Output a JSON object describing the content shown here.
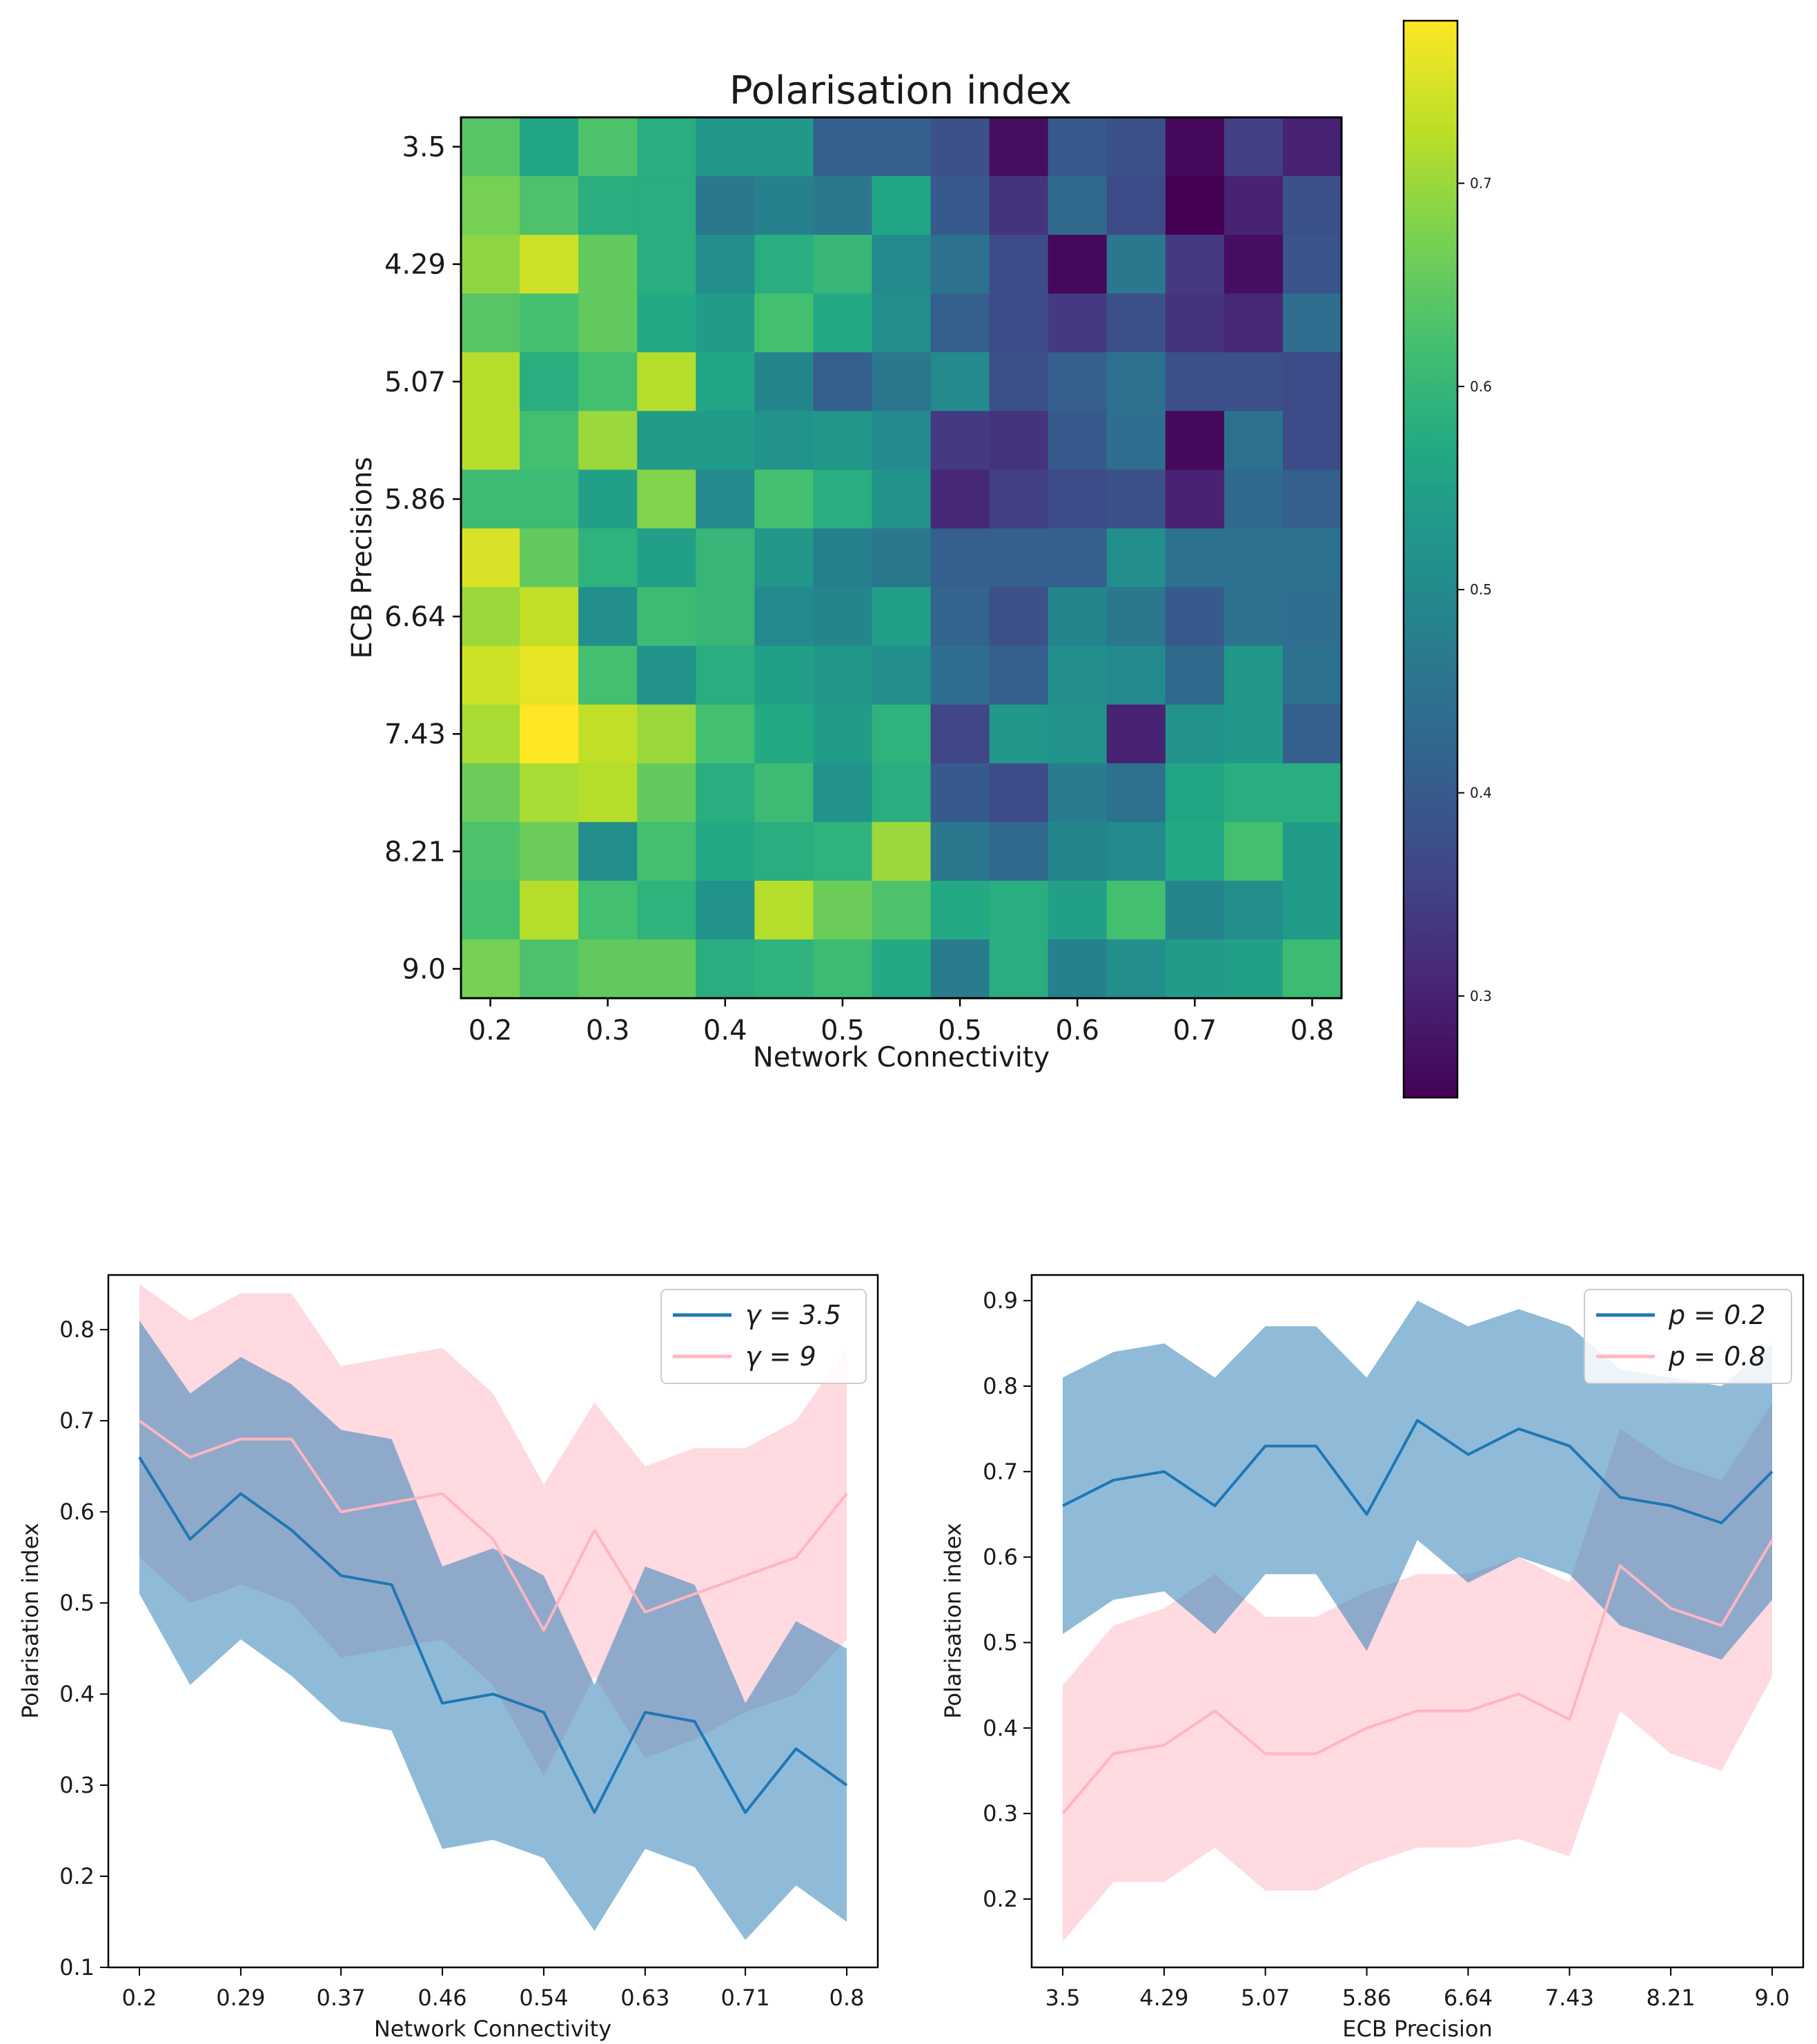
{
  "chart_data": [
    {
      "type": "heatmap",
      "title": "Polarisation index",
      "xlabel": "Network Connectivity",
      "ylabel": "ECB Precisions",
      "x_tick_labels": [
        "0.2",
        "0.3",
        "0.4",
        "0.5",
        "0.5",
        "0.6",
        "0.7",
        "0.8"
      ],
      "y_tick_labels": [
        "3.5",
        "4.29",
        "5.07",
        "5.86",
        "6.64",
        "7.43",
        "8.21",
        "9.0"
      ],
      "colorbar": {
        "min": 0.25,
        "max": 0.78,
        "ticks": [
          "0.3",
          "0.4",
          "0.5",
          "0.6",
          "0.7"
        ],
        "colormap": "viridis"
      },
      "values": [
        [
          0.64,
          0.56,
          0.63,
          0.58,
          0.53,
          0.53,
          0.41,
          0.41,
          0.38,
          0.27,
          0.4,
          0.38,
          0.26,
          0.35,
          0.3
        ],
        [
          0.67,
          0.63,
          0.58,
          0.58,
          0.46,
          0.48,
          0.46,
          0.56,
          0.4,
          0.33,
          0.43,
          0.37,
          0.25,
          0.3,
          0.38
        ],
        [
          0.69,
          0.74,
          0.65,
          0.58,
          0.51,
          0.58,
          0.6,
          0.5,
          0.45,
          0.37,
          0.26,
          0.46,
          0.34,
          0.27,
          0.39
        ],
        [
          0.64,
          0.62,
          0.65,
          0.57,
          0.54,
          0.62,
          0.57,
          0.51,
          0.41,
          0.37,
          0.34,
          0.38,
          0.33,
          0.31,
          0.44
        ],
        [
          0.72,
          0.58,
          0.62,
          0.72,
          0.56,
          0.49,
          0.41,
          0.46,
          0.5,
          0.38,
          0.41,
          0.45,
          0.38,
          0.38,
          0.37
        ],
        [
          0.72,
          0.62,
          0.7,
          0.54,
          0.54,
          0.52,
          0.53,
          0.5,
          0.34,
          0.33,
          0.4,
          0.44,
          0.26,
          0.45,
          0.37
        ],
        [
          0.61,
          0.61,
          0.55,
          0.68,
          0.5,
          0.62,
          0.58,
          0.52,
          0.31,
          0.35,
          0.37,
          0.38,
          0.3,
          0.43,
          0.41
        ],
        [
          0.75,
          0.65,
          0.59,
          0.55,
          0.6,
          0.53,
          0.48,
          0.46,
          0.41,
          0.41,
          0.41,
          0.51,
          0.45,
          0.45,
          0.45
        ],
        [
          0.7,
          0.73,
          0.51,
          0.61,
          0.6,
          0.5,
          0.49,
          0.55,
          0.42,
          0.38,
          0.49,
          0.46,
          0.4,
          0.45,
          0.44
        ],
        [
          0.74,
          0.76,
          0.62,
          0.52,
          0.58,
          0.55,
          0.53,
          0.51,
          0.44,
          0.41,
          0.51,
          0.5,
          0.43,
          0.53,
          0.45
        ],
        [
          0.71,
          0.78,
          0.73,
          0.7,
          0.62,
          0.57,
          0.54,
          0.59,
          0.36,
          0.53,
          0.52,
          0.3,
          0.52,
          0.53,
          0.41
        ],
        [
          0.66,
          0.71,
          0.72,
          0.65,
          0.58,
          0.61,
          0.52,
          0.58,
          0.4,
          0.37,
          0.47,
          0.45,
          0.56,
          0.58,
          0.58
        ],
        [
          0.63,
          0.66,
          0.51,
          0.62,
          0.57,
          0.58,
          0.59,
          0.7,
          0.46,
          0.43,
          0.49,
          0.5,
          0.57,
          0.62,
          0.54
        ],
        [
          0.62,
          0.72,
          0.62,
          0.59,
          0.52,
          0.72,
          0.66,
          0.63,
          0.57,
          0.58,
          0.55,
          0.62,
          0.49,
          0.51,
          0.54
        ],
        [
          0.67,
          0.63,
          0.65,
          0.65,
          0.58,
          0.59,
          0.61,
          0.57,
          0.47,
          0.58,
          0.48,
          0.51,
          0.54,
          0.55,
          0.61
        ]
      ]
    },
    {
      "type": "line",
      "xlabel": "Network Connectivity",
      "ylabel": "Polarisation index",
      "x": [
        0.2,
        0.243,
        0.286,
        0.329,
        0.371,
        0.414,
        0.457,
        0.5,
        0.543,
        0.586,
        0.629,
        0.671,
        0.714,
        0.757,
        0.8
      ],
      "x_tick_labels": [
        "0.2",
        "0.29",
        "0.37",
        "0.46",
        "0.54",
        "0.63",
        "0.71",
        "0.8"
      ],
      "x_tick_values": [
        0.2,
        0.286,
        0.371,
        0.457,
        0.543,
        0.629,
        0.714,
        0.8
      ],
      "y_ticks": [
        "0.1",
        "0.2",
        "0.3",
        "0.4",
        "0.5",
        "0.6",
        "0.7",
        "0.8"
      ],
      "ylim": [
        0.1,
        0.86
      ],
      "legend_location": "top-right",
      "series": [
        {
          "name": "γ = 9",
          "color": "#ffb6c1",
          "values": [
            0.7,
            0.66,
            0.68,
            0.68,
            0.6,
            0.61,
            0.62,
            0.57,
            0.47,
            0.58,
            0.49,
            0.51,
            0.53,
            0.55,
            0.62
          ],
          "lower": [
            0.55,
            0.5,
            0.52,
            0.5,
            0.44,
            0.45,
            0.46,
            0.41,
            0.31,
            0.42,
            0.33,
            0.35,
            0.38,
            0.4,
            0.46
          ],
          "upper": [
            0.85,
            0.81,
            0.84,
            0.84,
            0.76,
            0.77,
            0.78,
            0.73,
            0.63,
            0.72,
            0.65,
            0.67,
            0.67,
            0.7,
            0.78
          ]
        },
        {
          "name": "γ = 3.5",
          "color": "#1f77b4",
          "values": [
            0.66,
            0.57,
            0.62,
            0.58,
            0.53,
            0.52,
            0.39,
            0.4,
            0.38,
            0.27,
            0.38,
            0.37,
            0.27,
            0.34,
            0.3
          ],
          "lower": [
            0.51,
            0.41,
            0.46,
            0.42,
            0.37,
            0.36,
            0.23,
            0.24,
            0.22,
            0.14,
            0.23,
            0.21,
            0.13,
            0.19,
            0.15
          ],
          "upper": [
            0.81,
            0.73,
            0.77,
            0.74,
            0.69,
            0.68,
            0.54,
            0.56,
            0.53,
            0.41,
            0.54,
            0.52,
            0.39,
            0.48,
            0.45
          ]
        }
      ]
    },
    {
      "type": "line",
      "xlabel": "ECB Precision",
      "ylabel": "Polarisation index",
      "x": [
        3.5,
        3.893,
        4.286,
        4.679,
        5.071,
        5.464,
        5.857,
        6.25,
        6.643,
        7.036,
        7.429,
        7.821,
        8.214,
        8.607,
        9.0
      ],
      "x_tick_labels": [
        "3.5",
        "4.29",
        "5.07",
        "5.86",
        "6.64",
        "7.43",
        "8.21",
        "9.0"
      ],
      "x_tick_values": [
        3.5,
        4.286,
        5.071,
        5.857,
        6.643,
        7.429,
        8.214,
        9.0
      ],
      "y_ticks": [
        "0.2",
        "0.3",
        "0.4",
        "0.5",
        "0.6",
        "0.7",
        "0.8",
        "0.9"
      ],
      "ylim": [
        0.12,
        0.93
      ],
      "legend_location": "top-right",
      "series": [
        {
          "name": "p = 0.8",
          "color": "#ffb6c1",
          "values": [
            0.3,
            0.37,
            0.38,
            0.42,
            0.37,
            0.37,
            0.4,
            0.42,
            0.42,
            0.44,
            0.41,
            0.59,
            0.54,
            0.52,
            0.62
          ],
          "lower": [
            0.15,
            0.22,
            0.22,
            0.26,
            0.21,
            0.21,
            0.24,
            0.26,
            0.26,
            0.27,
            0.25,
            0.42,
            0.37,
            0.35,
            0.46
          ],
          "upper": [
            0.45,
            0.52,
            0.54,
            0.58,
            0.53,
            0.53,
            0.56,
            0.58,
            0.58,
            0.6,
            0.57,
            0.75,
            0.71,
            0.69,
            0.78
          ]
        },
        {
          "name": "p = 0.2",
          "color": "#1f77b4",
          "values": [
            0.66,
            0.69,
            0.7,
            0.66,
            0.73,
            0.73,
            0.65,
            0.76,
            0.72,
            0.75,
            0.73,
            0.67,
            0.66,
            0.64,
            0.7
          ],
          "lower": [
            0.51,
            0.55,
            0.56,
            0.51,
            0.58,
            0.58,
            0.49,
            0.62,
            0.57,
            0.6,
            0.58,
            0.52,
            0.5,
            0.48,
            0.55
          ],
          "upper": [
            0.81,
            0.84,
            0.85,
            0.81,
            0.87,
            0.87,
            0.81,
            0.9,
            0.87,
            0.89,
            0.87,
            0.82,
            0.81,
            0.8,
            0.85
          ]
        }
      ]
    }
  ]
}
